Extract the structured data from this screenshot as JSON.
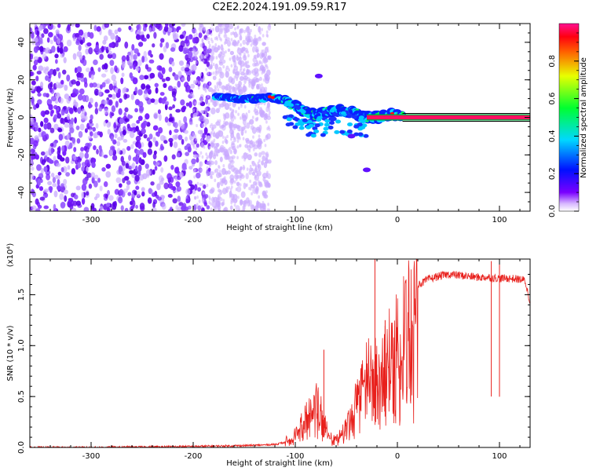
{
  "title": "C2E2.2024.191.09.59.R17",
  "chart_data": [
    {
      "type": "heatmap",
      "xlabel": "Height of straight line (km)",
      "ylabel": "Frequency (Hz)",
      "xlim": [
        -360,
        130
      ],
      "ylim": [
        -50,
        50
      ],
      "x_ticks": [
        -300,
        -200,
        -100,
        0,
        100
      ],
      "x_tick_labels": [
        "-300",
        "-200",
        "-100",
        "0",
        "100"
      ],
      "y_ticks": [
        -40,
        -20,
        0,
        20,
        40
      ],
      "y_tick_labels": [
        "-40",
        "-20",
        "0",
        "20",
        "40"
      ],
      "colorbar": {
        "label": "Normalized spectral amplitude",
        "range": [
          0,
          1
        ],
        "ticks": [
          0.0,
          0.2,
          0.4,
          0.6,
          0.8
        ],
        "tick_labels": [
          "0.0",
          "0.2",
          "0.4",
          "0.6",
          "0.8"
        ]
      },
      "ridge": {
        "x": [
          -175,
          -160,
          -150,
          -140,
          -130,
          -125,
          -118,
          -110,
          -100,
          -90,
          -80,
          -70,
          -60,
          -50,
          -40,
          -35,
          -30,
          -20,
          -10,
          -5,
          0,
          10,
          50,
          130
        ],
        "y": [
          11,
          10,
          10,
          10,
          10,
          11,
          10,
          9,
          6,
          3,
          1,
          3,
          4,
          3,
          2,
          0,
          0,
          0,
          1,
          2,
          1,
          0,
          0,
          0
        ]
      },
      "noise_region_x": [
        -360,
        -130
      ],
      "grid": false
    },
    {
      "type": "line",
      "xlabel": "Height of straight line (km)",
      "ylabel": "SNR (10 * v/v)",
      "y_multiplier": "(x10⁴)",
      "xlim": [
        -360,
        130
      ],
      "ylim": [
        0,
        1.85
      ],
      "x_ticks": [
        -300,
        -200,
        -100,
        0,
        100
      ],
      "x_tick_labels": [
        "-300",
        "-200",
        "-100",
        "0",
        "100"
      ],
      "y_ticks": [
        0.0,
        0.5,
        1.0,
        1.5
      ],
      "y_tick_labels": [
        "0.0",
        "0.5",
        "1.0",
        "1.5"
      ],
      "color": "#e8201c",
      "series": [
        {
          "x": [
            -360,
            -300,
            -200,
            -140,
            -120,
            -110,
            -105,
            -100,
            -95,
            -90,
            -85,
            -80,
            -75,
            -70,
            -65,
            -60,
            -55,
            -50,
            -45,
            -40,
            -35,
            -30,
            -25,
            -20,
            -15,
            -10,
            -5,
            0,
            5,
            10,
            15,
            20,
            25,
            30,
            40,
            50,
            60,
            70,
            80,
            90,
            100,
            110,
            120,
            125,
            130
          ],
          "y": [
            0.0,
            0.0,
            0.01,
            0.02,
            0.03,
            0.05,
            0.1,
            0.15,
            0.25,
            0.35,
            0.45,
            0.55,
            0.45,
            0.25,
            0.1,
            0.08,
            0.15,
            0.25,
            0.4,
            0.55,
            0.7,
            0.85,
            0.9,
            0.85,
            0.95,
            1.05,
            1.15,
            1.25,
            1.35,
            1.45,
            1.55,
            1.6,
            1.62,
            1.65,
            1.68,
            1.7,
            1.69,
            1.68,
            1.67,
            1.67,
            1.66,
            1.66,
            1.65,
            1.64,
            1.42
          ],
          "peaks": [
            {
              "x": -72,
              "y": 0.96
            },
            {
              "x": -22,
              "y": 1.85
            },
            {
              "x": -12,
              "y": 1.25
            },
            {
              "x": 92,
              "y": 1.83
            },
            {
              "x": 100,
              "y": 1.8
            }
          ]
        }
      ],
      "grid": false
    }
  ]
}
